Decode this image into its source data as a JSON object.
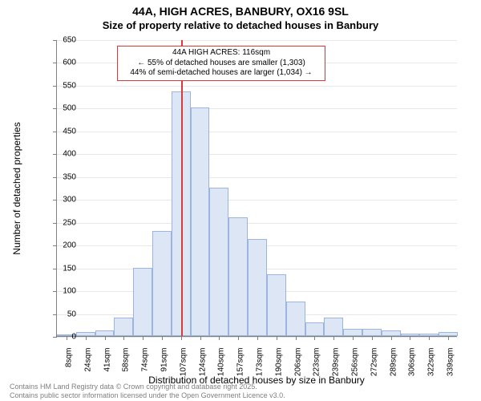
{
  "title": {
    "main": "44A, HIGH ACRES, BANBURY, OX16 9SL",
    "sub": "Size of property relative to detached houses in Banbury"
  },
  "chart": {
    "type": "histogram",
    "background_color": "#ffffff",
    "grid_color": "#e8e8e8",
    "axis_color": "#808080",
    "bar_fill": "#dde6f4",
    "bar_border": "#9bb5de",
    "bar_border_width": 1,
    "y": {
      "label": "Number of detached properties",
      "min": 0,
      "max": 650,
      "ticks": [
        0,
        50,
        100,
        150,
        200,
        250,
        300,
        350,
        400,
        450,
        500,
        550,
        600,
        650
      ],
      "tick_labels": [
        "0",
        "50",
        "100",
        "150",
        "200",
        "250",
        "300",
        "350",
        "400",
        "450",
        "500",
        "550",
        "600",
        "650"
      ],
      "label_fontsize": 12,
      "tick_fontsize": 10
    },
    "x": {
      "label": "Distribution of detached houses by size in Banbury",
      "tick_labels": [
        "8sqm",
        "24sqm",
        "41sqm",
        "58sqm",
        "74sqm",
        "91sqm",
        "107sqm",
        "124sqm",
        "140sqm",
        "157sqm",
        "173sqm",
        "190sqm",
        "206sqm",
        "223sqm",
        "239sqm",
        "256sqm",
        "272sqm",
        "289sqm",
        "306sqm",
        "322sqm",
        "339sqm"
      ],
      "label_fontsize": 12,
      "tick_fontsize": 10
    },
    "bars": [
      2,
      8,
      12,
      40,
      150,
      230,
      535,
      500,
      325,
      260,
      212,
      135,
      75,
      30,
      40,
      15,
      15,
      12,
      5,
      6,
      8
    ],
    "reference": {
      "index_position": 6.5,
      "color": "#d93b3b",
      "width": 2
    },
    "annotation": {
      "lines": [
        "44A HIGH ACRES: 116sqm",
        "← 55% of detached houses are smaller (1,303)",
        "44% of semi-detached houses are larger (1,034) →"
      ],
      "border_color": "#d93b3b",
      "border_width": 1,
      "background": "#ffffff",
      "fontsize": 10
    }
  },
  "credits": {
    "text1": "Contains HM Land Registry data © Crown copyright and database right 2025.",
    "text2": "Contains public sector information licensed under the Open Government Licence v3.0.",
    "color": "#808080",
    "fontsize": 9
  }
}
